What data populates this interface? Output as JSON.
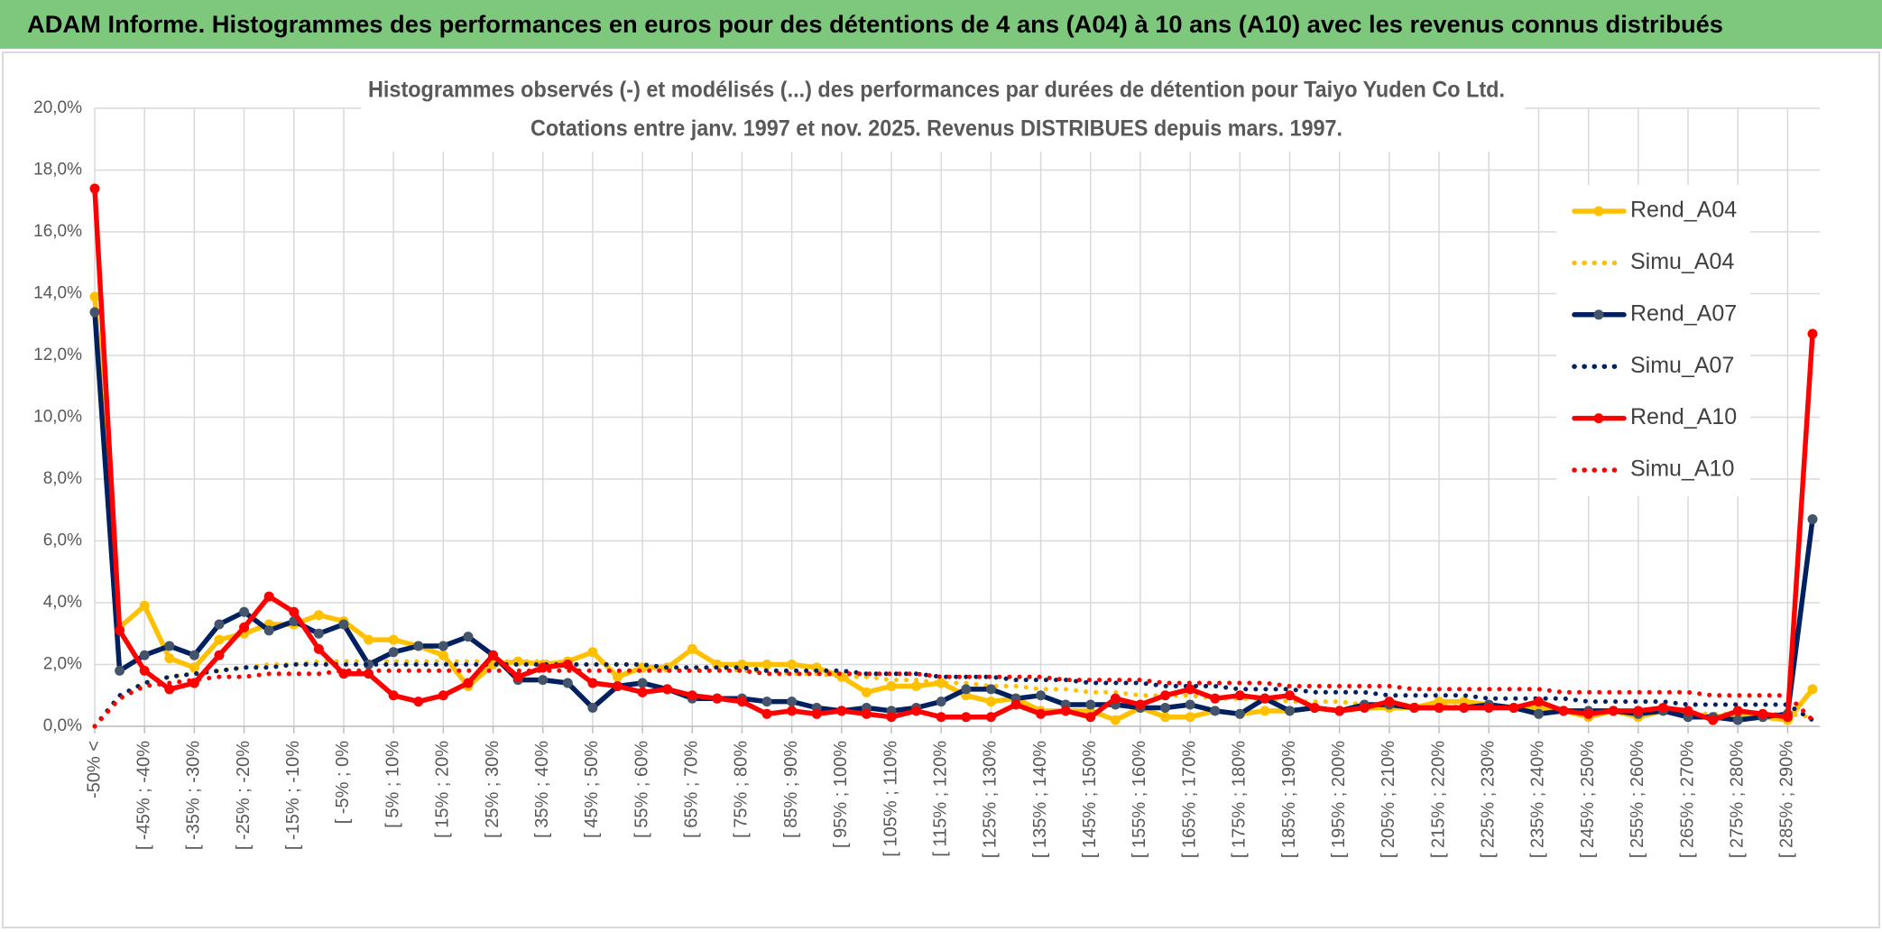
{
  "chart_data": {
    "type": "line",
    "header": "ADAM Informe. Histogrammes des performances en euros pour des détentions de 4 ans (A04) à 10 ans (A10) avec les revenus connus distribués",
    "title": "Histogrammes observés (-) et modélisés (...) des performances par durées de détention pour Taiyo Yuden Co Ltd.",
    "subtitle": "Cotations entre janv. 1997 et nov. 2025. Revenus DISTRIBUES depuis mars. 1997.",
    "categories": [
      "-50% <",
      null,
      "[ -45% ; -40%",
      null,
      "[ -35% ; -30%",
      null,
      "[ -25% ; -20%",
      null,
      "[ -15% ; -10%",
      null,
      "[ -5% ; 0%",
      null,
      "[ 5% ; 10%",
      null,
      "[ 15% ; 20%",
      null,
      "[ 25% ; 30%",
      null,
      "[ 35% ; 40%",
      null,
      "[ 45% ; 50%",
      null,
      "[ 55% ; 60%",
      null,
      "[ 65% ; 70%",
      null,
      "[ 75% ; 80%",
      null,
      "[ 85% ; 90%",
      null,
      "[ 95% ; 100%",
      null,
      "[ 105% ; 110%",
      null,
      "[ 115% ; 120%",
      null,
      "[ 125% ; 130%",
      null,
      "[ 135% ; 140%",
      null,
      "[ 145% ; 150%",
      null,
      "[ 155% ; 160%",
      null,
      "[ 165% ; 170%",
      null,
      "[ 175% ; 180%",
      null,
      "[ 185% ; 190%",
      null,
      "[ 195% ; 200%",
      null,
      "[ 205% ; 210%",
      null,
      "[ 215% ; 220%",
      null,
      "[ 225% ; 230%",
      null,
      "[ 235% ; 240%",
      null,
      "[ 245% ; 250%",
      null,
      "[ 255% ; 260%",
      null,
      "[ 265% ; 270%",
      null,
      "[ 275% ; 280%",
      null,
      "[ 285% ; 290%",
      null
    ],
    "series": [
      {
        "name": "Rend_A04",
        "color": "#ffc000",
        "dash": "solid",
        "markers": true,
        "values": [
          13.9,
          3.2,
          3.9,
          2.2,
          1.9,
          2.8,
          3.0,
          3.3,
          3.3,
          3.6,
          3.4,
          2.8,
          2.8,
          2.6,
          2.3,
          1.3,
          2.0,
          2.1,
          2.0,
          2.1,
          2.4,
          1.6,
          1.9,
          1.9,
          2.5,
          2.0,
          2.0,
          2.0,
          2.0,
          1.9,
          1.6,
          1.1,
          1.3,
          1.3,
          1.4,
          1.0,
          0.8,
          0.9,
          0.5,
          0.5,
          0.5,
          0.2,
          0.6,
          0.3,
          0.3,
          0.5,
          0.4,
          0.5,
          0.5,
          0.6,
          0.5,
          0.6,
          0.6,
          0.6,
          0.8,
          0.8,
          0.7,
          0.6,
          0.6,
          0.5,
          0.3,
          0.5,
          0.3,
          0.5,
          0.4,
          0.3,
          0.4,
          0.3,
          0.2,
          1.2
        ]
      },
      {
        "name": "Simu_A04",
        "color": "#ffc000",
        "dash": "dotted",
        "markers": false,
        "values": [
          0,
          0.9,
          1.4,
          1.6,
          1.7,
          1.8,
          1.9,
          2.0,
          2.0,
          2.1,
          2.1,
          2.1,
          2.1,
          2.1,
          2.1,
          2.1,
          2.1,
          2.1,
          2.1,
          2.0,
          2.0,
          2.0,
          2.0,
          1.9,
          1.9,
          1.9,
          1.8,
          1.8,
          1.7,
          1.7,
          1.6,
          1.6,
          1.5,
          1.5,
          1.4,
          1.4,
          1.3,
          1.3,
          1.2,
          1.2,
          1.1,
          1.1,
          1.0,
          1.0,
          1.0,
          0.9,
          0.9,
          0.9,
          0.8,
          0.8,
          0.8,
          0.7,
          0.7,
          0.7,
          0.7,
          0.6,
          0.6,
          0.6,
          0.6,
          0.5,
          0.5,
          0.5,
          0.5,
          0.5,
          0.4,
          0.4,
          0.4,
          0.4,
          0.4,
          0.3
        ]
      },
      {
        "name": "Rend_A07",
        "color": "#002060",
        "marker_color": "#44546a",
        "dash": "solid",
        "markers": true,
        "values": [
          13.4,
          1.8,
          2.3,
          2.6,
          2.3,
          3.3,
          3.7,
          3.1,
          3.4,
          3.0,
          3.3,
          2.0,
          2.4,
          2.6,
          2.6,
          2.9,
          2.3,
          1.5,
          1.5,
          1.4,
          0.6,
          1.3,
          1.4,
          1.2,
          0.9,
          0.9,
          0.9,
          0.8,
          0.8,
          0.6,
          0.5,
          0.6,
          0.5,
          0.6,
          0.8,
          1.2,
          1.2,
          0.9,
          1.0,
          0.7,
          0.7,
          0.7,
          0.6,
          0.6,
          0.7,
          0.5,
          0.4,
          0.9,
          0.5,
          0.6,
          0.5,
          0.7,
          0.7,
          0.6,
          0.6,
          0.6,
          0.7,
          0.6,
          0.4,
          0.5,
          0.5,
          0.5,
          0.4,
          0.5,
          0.3,
          0.3,
          0.2,
          0.3,
          0.4,
          6.7
        ]
      },
      {
        "name": "Simu_A07",
        "color": "#002060",
        "dash": "dotted",
        "markers": false,
        "values": [
          0,
          1.0,
          1.4,
          1.6,
          1.7,
          1.8,
          1.9,
          1.9,
          2.0,
          2.0,
          2.0,
          2.0,
          2.0,
          2.0,
          2.0,
          2.0,
          2.0,
          2.0,
          2.0,
          2.0,
          2.0,
          2.0,
          2.0,
          1.9,
          1.9,
          1.9,
          1.9,
          1.8,
          1.8,
          1.8,
          1.8,
          1.7,
          1.7,
          1.7,
          1.6,
          1.6,
          1.6,
          1.5,
          1.5,
          1.5,
          1.4,
          1.4,
          1.4,
          1.3,
          1.3,
          1.3,
          1.2,
          1.2,
          1.2,
          1.1,
          1.1,
          1.1,
          1.0,
          1.0,
          1.0,
          1.0,
          0.9,
          0.9,
          0.9,
          0.9,
          0.8,
          0.8,
          0.8,
          0.8,
          0.7,
          0.7,
          0.7,
          0.7,
          0.7,
          0.2
        ]
      },
      {
        "name": "Rend_A10",
        "color": "#ff0000",
        "dash": "solid",
        "markers": true,
        "values": [
          17.4,
          3.1,
          1.8,
          1.2,
          1.4,
          2.3,
          3.2,
          4.2,
          3.7,
          2.5,
          1.7,
          1.7,
          1.0,
          0.8,
          1.0,
          1.4,
          2.3,
          1.6,
          1.9,
          2.0,
          1.4,
          1.3,
          1.1,
          1.2,
          1.0,
          0.9,
          0.8,
          0.4,
          0.5,
          0.4,
          0.5,
          0.4,
          0.3,
          0.5,
          0.3,
          0.3,
          0.3,
          0.7,
          0.4,
          0.5,
          0.3,
          0.9,
          0.7,
          1.0,
          1.2,
          0.9,
          1.0,
          0.9,
          1.0,
          0.6,
          0.5,
          0.6,
          0.8,
          0.6,
          0.6,
          0.6,
          0.6,
          0.6,
          0.8,
          0.5,
          0.4,
          0.5,
          0.5,
          0.6,
          0.5,
          0.2,
          0.5,
          0.4,
          0.3,
          12.7
        ]
      },
      {
        "name": "Simu_A10",
        "color": "#ff0000",
        "dash": "dotted",
        "markers": false,
        "values": [
          0,
          0.9,
          1.3,
          1.4,
          1.5,
          1.6,
          1.6,
          1.7,
          1.7,
          1.7,
          1.8,
          1.8,
          1.8,
          1.8,
          1.8,
          1.8,
          1.8,
          1.8,
          1.8,
          1.8,
          1.8,
          1.8,
          1.8,
          1.8,
          1.8,
          1.8,
          1.8,
          1.7,
          1.7,
          1.7,
          1.7,
          1.7,
          1.7,
          1.7,
          1.6,
          1.6,
          1.6,
          1.6,
          1.6,
          1.5,
          1.5,
          1.5,
          1.5,
          1.4,
          1.4,
          1.4,
          1.4,
          1.4,
          1.3,
          1.3,
          1.3,
          1.3,
          1.3,
          1.2,
          1.2,
          1.2,
          1.2,
          1.2,
          1.2,
          1.1,
          1.1,
          1.1,
          1.1,
          1.1,
          1.1,
          1.0,
          1.0,
          1.0,
          1.0,
          0.2
        ]
      }
    ],
    "ylim": [
      0,
      20
    ],
    "yticks": [
      {
        "value": 0,
        "label": "0,0%"
      },
      {
        "value": 2,
        "label": "2,0%"
      },
      {
        "value": 4,
        "label": "4,0%"
      },
      {
        "value": 6,
        "label": "6,0%"
      },
      {
        "value": 8,
        "label": "8,0%"
      },
      {
        "value": 10,
        "label": "10,0%"
      },
      {
        "value": 12,
        "label": "12,0%"
      },
      {
        "value": 14,
        "label": "14,0%"
      },
      {
        "value": 16,
        "label": "16,0%"
      },
      {
        "value": 18,
        "label": "18,0%"
      },
      {
        "value": 20,
        "label": "20,0%"
      }
    ],
    "grid": true,
    "legend": "right"
  }
}
